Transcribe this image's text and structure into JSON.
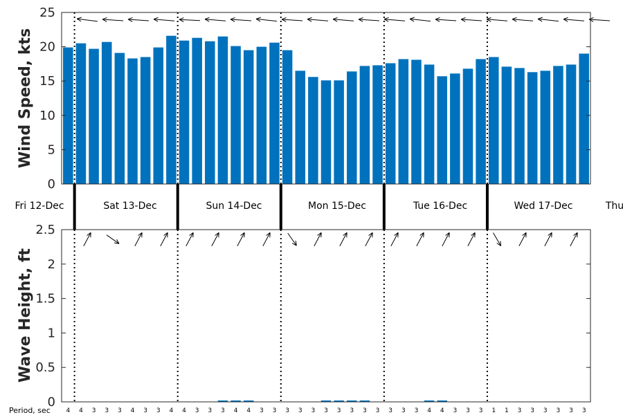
{
  "chart_data": [
    {
      "type": "bar",
      "ylabel": "Wind Speed, kts",
      "ylim": [
        0,
        25
      ],
      "yticks": [
        "0",
        "5",
        "10",
        "15",
        "20",
        "25"
      ],
      "color": "#0072BD",
      "values": [
        19.9,
        20.5,
        19.7,
        20.7,
        19.1,
        18.3,
        18.5,
        19.9,
        21.6,
        20.9,
        21.3,
        20.8,
        21.5,
        20.1,
        19.5,
        20.0,
        20.6,
        19.5,
        16.5,
        15.6,
        15.1,
        15.1,
        16.4,
        17.2,
        17.3,
        17.6,
        18.2,
        18.1,
        17.4,
        15.7,
        16.1,
        16.8,
        18.2,
        18.5,
        17.1,
        16.9,
        16.3,
        16.5,
        17.2,
        17.4,
        19.0
      ],
      "wind_arrows": "direction arrows along the top, pointing left"
    },
    {
      "type": "bar",
      "ylabel": "Wave Height, ft",
      "ylim": [
        0,
        2.5
      ],
      "yticks": [
        "0",
        "0.5",
        "1",
        "1.5",
        "2",
        "2.5"
      ],
      "color": "#0072BD",
      "values": [
        0,
        0,
        0,
        0,
        0,
        0,
        0,
        0,
        0,
        0,
        0,
        0,
        0.02,
        0.02,
        0.02,
        0,
        0,
        0,
        0,
        0,
        0.02,
        0.02,
        0.02,
        0.02,
        0,
        0,
        0,
        0,
        0.02,
        0.02,
        0,
        0,
        0,
        0,
        0,
        0,
        0,
        0,
        0,
        0,
        0
      ],
      "wave_arrows": "wave direction arrows along the top"
    }
  ],
  "days": [
    "Fri 12-Dec",
    "Sat 13-Dec",
    "Sun 14-Dec",
    "Mon 15-Dec",
    "Tue 16-Dec",
    "Wed 17-Dec",
    "Thu"
  ],
  "period": {
    "label": "Period, sec",
    "values": [
      "4",
      "4",
      "3",
      "3",
      "3",
      "4",
      "3",
      "3",
      "4",
      "4",
      "3",
      "3",
      "3",
      "4",
      "4",
      "3",
      "3",
      "3",
      "3",
      "3",
      "3",
      "3",
      "3",
      "3",
      "3",
      "3",
      "3",
      "3",
      "4",
      "4",
      "3",
      "3",
      "3",
      "1",
      "1",
      "3",
      "3",
      "3",
      "3",
      "3",
      "3"
    ]
  }
}
